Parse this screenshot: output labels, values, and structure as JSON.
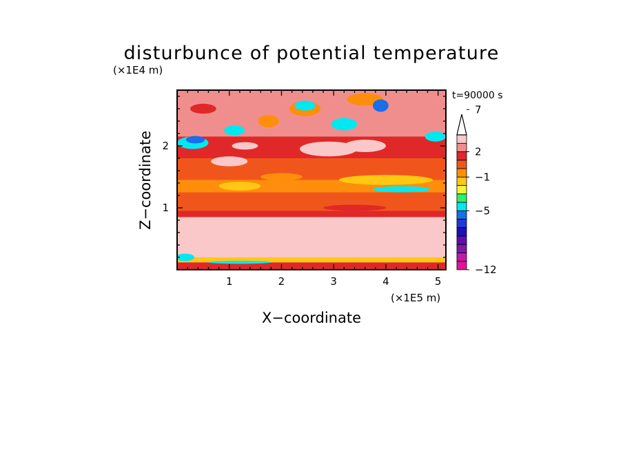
{
  "chart_data": {
    "type": "heatmap",
    "title": "disturbunce of potential temperature",
    "time_label": "t=90000 s",
    "xlabel": "X−coordinate",
    "ylabel": "Z−coordinate",
    "x_unit": "(×1E5 m)",
    "y_unit": "(×1E4 m)",
    "xlim": [
      0,
      5.15
    ],
    "ylim": [
      0,
      2.9
    ],
    "x_ticks": [
      1,
      2,
      3,
      4,
      5
    ],
    "y_ticks": [
      1,
      2
    ],
    "colorbar": {
      "levels_min": -12,
      "levels_max": 13,
      "tick_values": [
        7,
        2,
        -1,
        -5,
        -12
      ],
      "tick_labels": [
        "7",
        "2",
        "−1",
        "−5",
        "−12"
      ],
      "extend": "max",
      "colors": [
        "#e0149a",
        "#c11aa6",
        "#7f1aa8",
        "#5a10b0",
        "#1d0fb8",
        "#1f38d8",
        "#1b6de8",
        "#00e8f0",
        "#2ef06a",
        "#f2f53a",
        "#ffc812",
        "#ff8e0c",
        "#f0561c",
        "#e02828",
        "#f08e8e",
        "#fac8c8"
      ]
    },
    "bands": [
      {
        "z0": 0.0,
        "z1": 0.12,
        "value": 1
      },
      {
        "z0": 0.12,
        "z1": 0.2,
        "value": -2
      },
      {
        "z0": 0.2,
        "z1": 0.85,
        "value": 3
      },
      {
        "z0": 0.85,
        "z1": 0.95,
        "value": 1
      },
      {
        "z0": 0.95,
        "z1": 1.25,
        "value": 0
      },
      {
        "z0": 1.25,
        "z1": 1.45,
        "value": -1
      },
      {
        "z0": 1.45,
        "z1": 1.8,
        "value": 0
      },
      {
        "z0": 1.8,
        "z1": 2.15,
        "value": 1
      },
      {
        "z0": 2.15,
        "z1": 2.9,
        "value": 2
      }
    ],
    "features": [
      {
        "x": 0.8,
        "z": 0.55,
        "rx": 0.7,
        "rz": 0.1,
        "value": 4
      },
      {
        "x": 1.8,
        "z": 0.5,
        "rx": 0.45,
        "rz": 0.08,
        "value": 4
      },
      {
        "x": 3.4,
        "z": 0.45,
        "rx": 0.5,
        "rz": 0.1,
        "value": 4
      },
      {
        "x": 4.5,
        "z": 0.55,
        "rx": 0.5,
        "rz": 0.12,
        "value": 4
      },
      {
        "x": 0.15,
        "z": 0.2,
        "rx": 0.18,
        "rz": 0.06,
        "value": -5
      },
      {
        "x": 1.2,
        "z": 0.12,
        "rx": 0.6,
        "rz": 0.025,
        "value": -5
      },
      {
        "x": 3.4,
        "z": 1.0,
        "rx": 0.6,
        "rz": 0.05,
        "value": 1
      },
      {
        "x": 4.3,
        "z": 1.3,
        "rx": 0.55,
        "rz": 0.05,
        "value": -5
      },
      {
        "x": 1.2,
        "z": 1.35,
        "rx": 0.4,
        "rz": 0.07,
        "value": -2
      },
      {
        "x": 4.0,
        "z": 1.45,
        "rx": 0.9,
        "rz": 0.08,
        "value": -2
      },
      {
        "x": 0.3,
        "z": 2.05,
        "rx": 0.3,
        "rz": 0.1,
        "value": -5
      },
      {
        "x": 0.35,
        "z": 2.1,
        "rx": 0.18,
        "rz": 0.06,
        "value": -6
      },
      {
        "x": 1.0,
        "z": 1.75,
        "rx": 0.35,
        "rz": 0.08,
        "value": 4
      },
      {
        "x": 1.1,
        "z": 2.25,
        "rx": 0.2,
        "rz": 0.08,
        "value": -5
      },
      {
        "x": 1.3,
        "z": 2.0,
        "rx": 0.25,
        "rz": 0.06,
        "value": 3
      },
      {
        "x": 2.9,
        "z": 1.95,
        "rx": 0.55,
        "rz": 0.12,
        "value": 4
      },
      {
        "x": 3.6,
        "z": 2.0,
        "rx": 0.4,
        "rz": 0.1,
        "value": 5
      },
      {
        "x": 3.2,
        "z": 2.35,
        "rx": 0.25,
        "rz": 0.1,
        "value": -5
      },
      {
        "x": 2.45,
        "z": 2.6,
        "rx": 0.3,
        "rz": 0.12,
        "value": -1
      },
      {
        "x": 2.45,
        "z": 2.65,
        "rx": 0.2,
        "rz": 0.08,
        "value": -5
      },
      {
        "x": 3.6,
        "z": 2.75,
        "rx": 0.35,
        "rz": 0.1,
        "value": -1
      },
      {
        "x": 3.9,
        "z": 2.65,
        "rx": 0.15,
        "rz": 0.1,
        "value": -6
      },
      {
        "x": 1.75,
        "z": 2.4,
        "rx": 0.2,
        "rz": 0.1,
        "value": -1
      },
      {
        "x": 0.5,
        "z": 2.6,
        "rx": 0.25,
        "rz": 0.08,
        "value": 1
      },
      {
        "x": 4.95,
        "z": 2.15,
        "rx": 0.2,
        "rz": 0.08,
        "value": -5
      },
      {
        "x": 0.5,
        "z": 1.3,
        "rx": 0.3,
        "rz": 0.05,
        "value": -1
      },
      {
        "x": 2.0,
        "z": 1.5,
        "rx": 0.4,
        "rz": 0.06,
        "value": -1
      }
    ]
  }
}
